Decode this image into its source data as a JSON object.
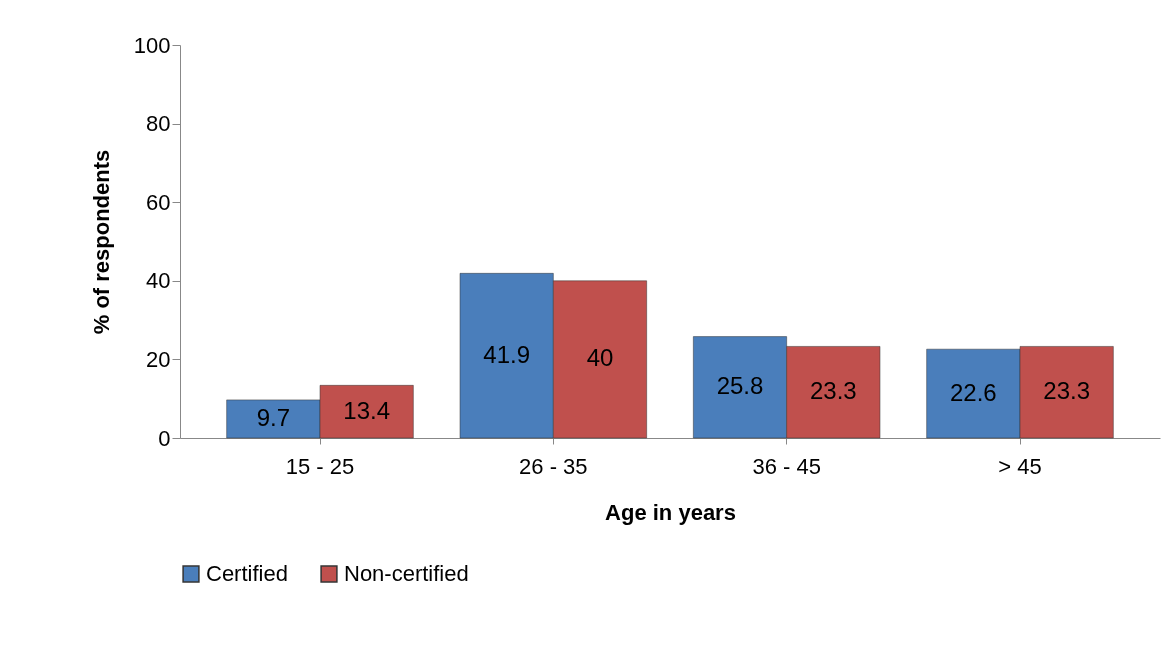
{
  "chart_data": {
    "type": "bar",
    "xlabel": "Age in years",
    "ylabel": "% of respondents",
    "categories": [
      "15 - 25",
      "26 - 35",
      "36 - 45",
      "> 45"
    ],
    "series": [
      {
        "name": "Certified",
        "color": "#4a7ebb",
        "values": [
          9.7,
          41.9,
          25.8,
          22.6
        ]
      },
      {
        "name": "Non-certified",
        "color": "#c0504d",
        "values": [
          13.4,
          40,
          23.3,
          23.3
        ]
      }
    ],
    "ylim": [
      0,
      100
    ],
    "yticks": [
      0,
      20,
      40,
      60,
      80,
      100
    ],
    "data_labels": true,
    "legend": "bottom",
    "grid": false
  }
}
